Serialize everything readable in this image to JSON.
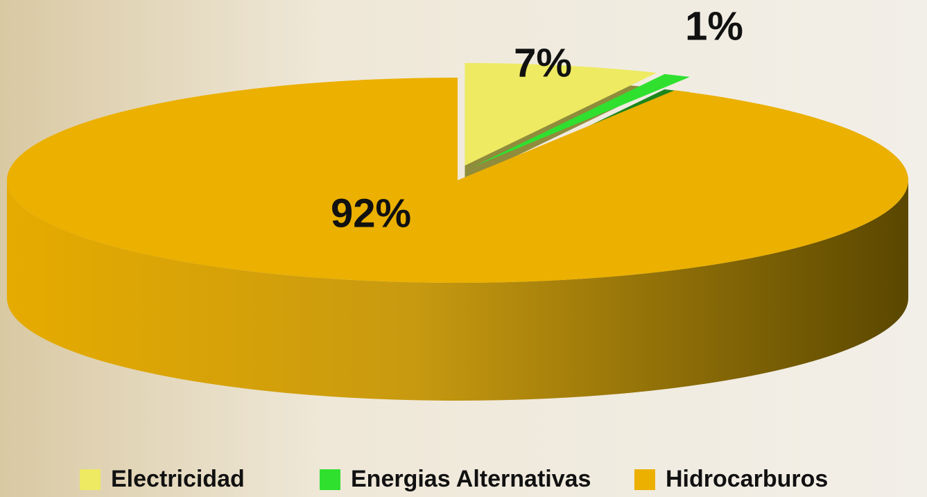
{
  "chart_data": {
    "type": "pie",
    "categories": [
      "Electricidad",
      "Energias Alternativas",
      "Hidrocarburos"
    ],
    "values": [
      7,
      1,
      92
    ],
    "value_labels": [
      "7%",
      "1%",
      "92%"
    ],
    "colors": [
      "#eeea62",
      "#2fe02f",
      "#ebb000"
    ],
    "legend": "bottom"
  }
}
